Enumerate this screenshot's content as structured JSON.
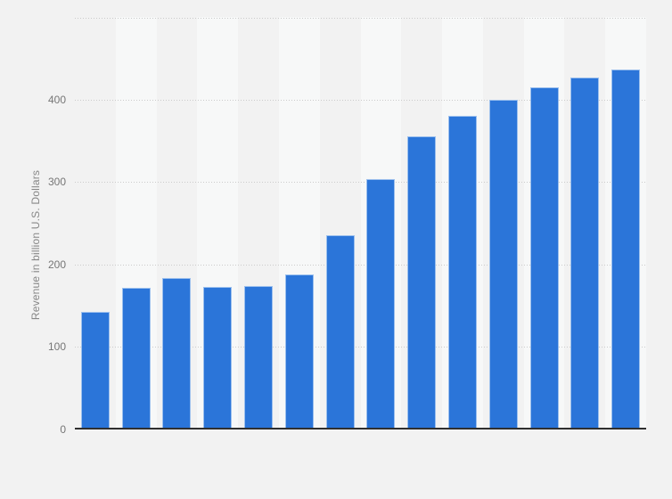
{
  "chart_data": {
    "type": "bar",
    "title": "",
    "xlabel": "",
    "ylabel": "Revenue in billion U.S. Dollars",
    "categories": [
      "",
      "",
      "",
      "",
      "",
      "",
      "",
      "",
      "",
      "",
      "",
      "",
      "",
      ""
    ],
    "values": [
      142,
      171,
      183,
      173,
      174,
      188,
      235,
      304,
      355,
      380,
      400,
      415,
      427,
      437
    ],
    "ylim": [
      0,
      500
    ],
    "yticks": [
      {
        "value": 0,
        "label": "0"
      },
      {
        "value": 100,
        "label": "100"
      },
      {
        "value": 200,
        "label": "200"
      },
      {
        "value": 300,
        "label": "300"
      },
      {
        "value": 400,
        "label": "400"
      },
      {
        "value": 500,
        "label": ""
      }
    ],
    "grid": "horizontal-dotted",
    "legend": null,
    "x_axis_labels_visible": false,
    "colors": {
      "bar": "#2b75d9",
      "bar_edge": "#9cc0ee",
      "background": "#f2f2f2",
      "column_band": "#f7f8f8",
      "gridline": "#cbcbcb",
      "axis_line": "#2f2f2f",
      "tick_text": "#767676"
    }
  }
}
